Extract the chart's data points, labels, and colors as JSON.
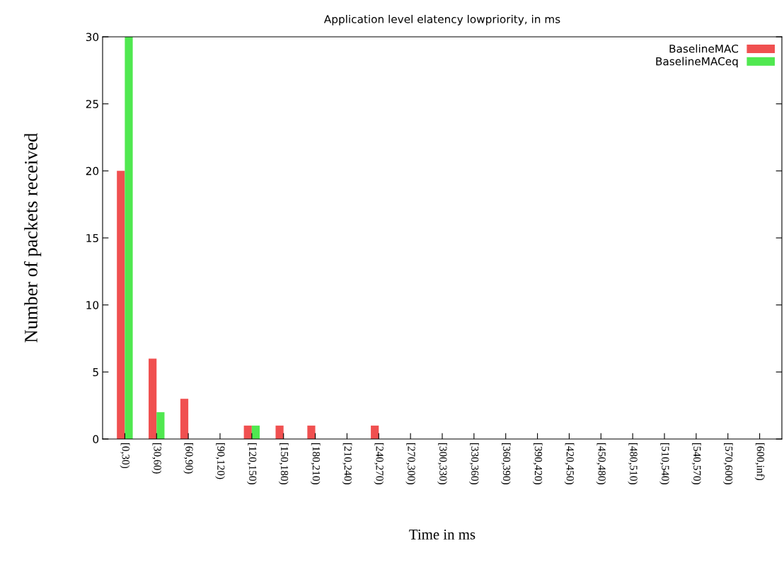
{
  "chart_data": {
    "type": "bar",
    "title": "Application level elatency lowpriority, in ms",
    "xlabel": "Time in ms",
    "ylabel": "Number of packets received",
    "categories": [
      "[0,30)",
      "[30,60)",
      "[60,90)",
      "[90,120)",
      "[120,150)",
      "[150,180)",
      "[180,210)",
      "[210,240)",
      "[240,270)",
      "[270,300)",
      "[300,330)",
      "[330,360)",
      "[360,390)",
      "[390,420)",
      "[420,450)",
      "[450,480)",
      "[480,510)",
      "[510,540)",
      "[540,570)",
      "[570,600)",
      "[600,inf)"
    ],
    "series": [
      {
        "name": "BaselineMAC",
        "color": "#f05050",
        "values": [
          20,
          6,
          3,
          0,
          1,
          1,
          1,
          0,
          1,
          0,
          0,
          0,
          0,
          0,
          0,
          0,
          0,
          0,
          0,
          0,
          0
        ]
      },
      {
        "name": "BaselineMACeq",
        "color": "#50e850",
        "values": [
          30,
          2,
          0,
          0,
          1,
          0,
          0,
          0,
          0,
          0,
          0,
          0,
          0,
          0,
          0,
          0,
          0,
          0,
          0,
          0,
          0
        ]
      }
    ],
    "ylim": [
      0,
      30
    ],
    "yticks": [
      0,
      5,
      10,
      15,
      20,
      25,
      30
    ],
    "grid": false,
    "legend": "top right"
  }
}
